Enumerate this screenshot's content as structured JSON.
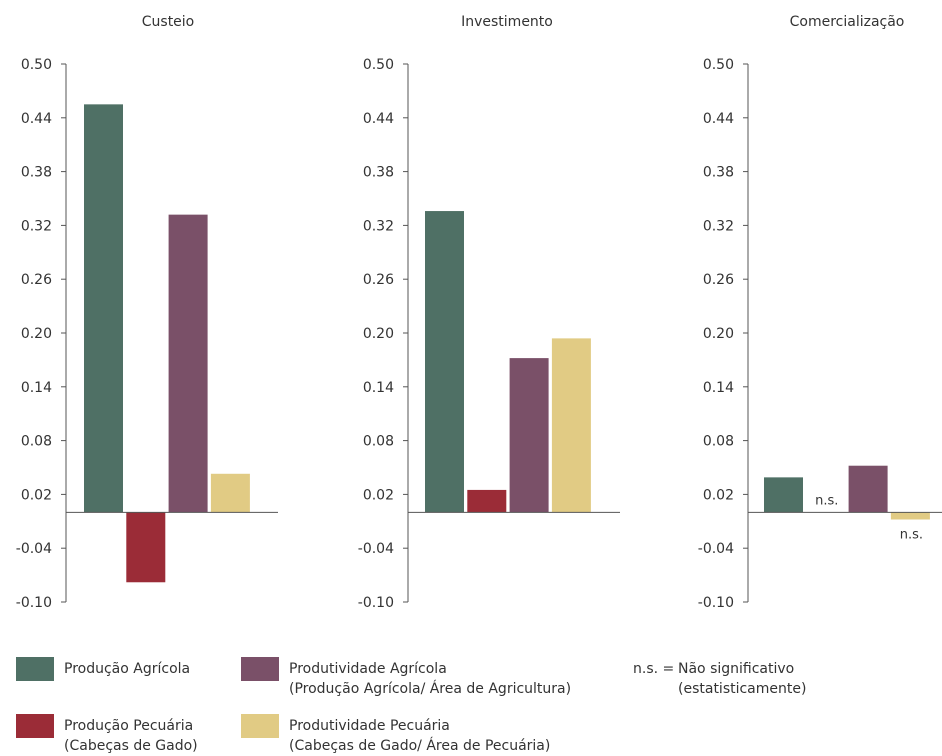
{
  "chart_data": [
    {
      "type": "bar",
      "title": "Custeio",
      "categories": [
        "Produção Agrícola",
        "Produção Pecuária",
        "Produtividade Agrícola",
        "Produtividade Pecuária"
      ],
      "values": [
        0.455,
        -0.078,
        0.332,
        0.043
      ],
      "annotations": [
        "",
        "",
        "",
        ""
      ],
      "ylim": [
        -0.1,
        0.5
      ],
      "yticks": [
        "0.50",
        "0.44",
        "0.38",
        "0.32",
        "0.26",
        "0.20",
        "0.14",
        "0.08",
        "0.02",
        "-0.04",
        "-0.10"
      ]
    },
    {
      "type": "bar",
      "title": "Investimento",
      "categories": [
        "Produção Agrícola",
        "Produção Pecuária",
        "Produtividade Agrícola",
        "Produtividade Pecuária"
      ],
      "values": [
        0.336,
        0.025,
        0.172,
        0.194
      ],
      "annotations": [
        "",
        "",
        "",
        ""
      ],
      "ylim": [
        -0.1,
        0.5
      ],
      "yticks": [
        "0.50",
        "0.44",
        "0.38",
        "0.32",
        "0.26",
        "0.20",
        "0.14",
        "0.08",
        "0.02",
        "-0.04",
        "-0.10"
      ]
    },
    {
      "type": "bar",
      "title": "Comercialização",
      "categories": [
        "Produção Agrícola",
        "Produção Pecuária",
        "Produtividade Agrícola",
        "Produtividade Pecuária"
      ],
      "values": [
        0.039,
        0.0,
        0.052,
        -0.008
      ],
      "annotations": [
        "",
        "n.s.",
        "",
        "n.s."
      ],
      "ylim": [
        -0.1,
        0.5
      ],
      "yticks": [
        "0.50",
        "0.44",
        "0.38",
        "0.32",
        "0.26",
        "0.20",
        "0.14",
        "0.08",
        "0.02",
        "-0.04",
        "-0.10"
      ]
    }
  ],
  "colors": [
    "#4f7065",
    "#9b2c37",
    "#7a5068",
    "#e1cb84"
  ],
  "legend": {
    "items": [
      {
        "line1": "Produção Agrícola",
        "line2": ""
      },
      {
        "line1": "Produção Pecuária",
        "line2": "(Cabeças de Gado)"
      },
      {
        "line1": "Produtividade Agrícola",
        "line2": "(Produção Agrícola/ Área de Agricultura)"
      },
      {
        "line1": "Produtividade Pecuária",
        "line2": "(Cabeças de Gado/ Área de Pecuária)"
      }
    ],
    "note_key": "n.s. =",
    "note_line1": "Não significativo",
    "note_line2": "(estatisticamente)"
  }
}
